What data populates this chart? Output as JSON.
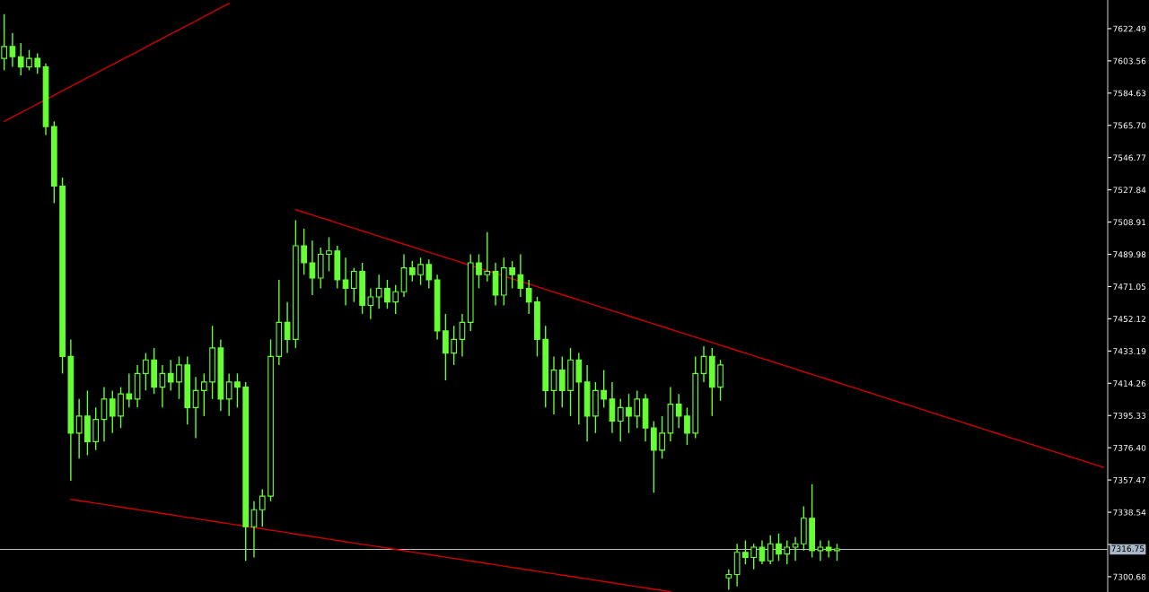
{
  "chart_data": {
    "type": "candlestick",
    "color": "#66ff33",
    "categories": [
      null,
      null,
      null,
      null,
      null,
      null,
      null,
      null,
      null,
      null,
      null,
      null,
      null,
      null,
      null,
      null,
      null,
      null,
      null,
      null,
      null,
      null,
      null,
      null,
      null,
      null,
      null,
      null,
      null,
      null,
      null,
      null,
      null,
      null,
      null,
      null,
      null,
      null,
      null,
      null,
      null,
      null,
      null,
      null,
      null,
      null,
      null,
      null,
      null,
      null,
      null,
      null,
      null,
      null,
      null,
      null,
      null,
      null,
      null,
      null,
      null,
      null,
      null,
      null,
      null,
      null,
      null,
      null,
      null,
      null,
      null,
      null,
      null,
      null,
      null,
      null,
      null,
      null,
      null,
      null,
      null,
      null,
      null,
      null,
      null,
      null,
      null,
      null,
      null,
      null,
      null,
      null,
      null,
      null,
      null,
      null,
      null,
      null,
      null,
      null,
      null,
      null,
      null,
      null,
      null,
      null,
      null,
      null,
      null,
      null,
      null,
      null,
      null,
      null,
      null,
      null,
      null,
      null,
      null,
      null,
      null,
      null,
      null,
      null,
      null,
      null,
      null,
      null,
      null,
      null,
      null,
      null,
      null
    ],
    "ohlc": [
      [
        7605,
        7631,
        7598,
        7612
      ],
      [
        7612,
        7620,
        7600,
        7606
      ],
      [
        7606,
        7614,
        7595,
        7600
      ],
      [
        7600,
        7610,
        7598,
        7605
      ],
      [
        7605,
        7608,
        7596,
        7600
      ],
      [
        7600,
        7602,
        7560,
        7565
      ],
      [
        7565,
        7568,
        7520,
        7530
      ],
      [
        7530,
        7535,
        7420,
        7430
      ],
      [
        7430,
        7440,
        7357,
        7385
      ],
      [
        7385,
        7405,
        7370,
        7395
      ],
      [
        7395,
        7410,
        7372,
        7380
      ],
      [
        7380,
        7400,
        7375,
        7393
      ],
      [
        7393,
        7412,
        7380,
        7405
      ],
      [
        7405,
        7410,
        7385,
        7395
      ],
      [
        7395,
        7412,
        7388,
        7408
      ],
      [
        7408,
        7420,
        7400,
        7405
      ],
      [
        7405,
        7425,
        7400,
        7420
      ],
      [
        7420,
        7432,
        7410,
        7428
      ],
      [
        7428,
        7435,
        7408,
        7412
      ],
      [
        7412,
        7425,
        7400,
        7420
      ],
      [
        7420,
        7428,
        7410,
        7415
      ],
      [
        7415,
        7430,
        7405,
        7425
      ],
      [
        7425,
        7430,
        7390,
        7400
      ],
      [
        7400,
        7418,
        7382,
        7410
      ],
      [
        7410,
        7420,
        7395,
        7415
      ],
      [
        7415,
        7448,
        7405,
        7435
      ],
      [
        7435,
        7440,
        7398,
        7405
      ],
      [
        7405,
        7420,
        7395,
        7415
      ],
      [
        7415,
        7420,
        7400,
        7412
      ],
      [
        7412,
        7415,
        7310,
        7330
      ],
      [
        7330,
        7345,
        7312,
        7340
      ],
      [
        7340,
        7352,
        7330,
        7348
      ],
      [
        7348,
        7440,
        7345,
        7430
      ],
      [
        7430,
        7475,
        7425,
        7450
      ],
      [
        7450,
        7462,
        7432,
        7440
      ],
      [
        7440,
        7510,
        7435,
        7495
      ],
      [
        7495,
        7505,
        7478,
        7485
      ],
      [
        7485,
        7498,
        7466,
        7476
      ],
      [
        7476,
        7494,
        7470,
        7490
      ],
      [
        7490,
        7500,
        7480,
        7492
      ],
      [
        7492,
        7495,
        7470,
        7475
      ],
      [
        7475,
        7488,
        7460,
        7470
      ],
      [
        7470,
        7482,
        7462,
        7480
      ],
      [
        7480,
        7485,
        7455,
        7460
      ],
      [
        7460,
        7470,
        7452,
        7465
      ],
      [
        7465,
        7478,
        7458,
        7470
      ],
      [
        7470,
        7475,
        7458,
        7462
      ],
      [
        7462,
        7472,
        7455,
        7468
      ],
      [
        7468,
        7490,
        7465,
        7482
      ],
      [
        7482,
        7486,
        7474,
        7478
      ],
      [
        7478,
        7488,
        7472,
        7484
      ],
      [
        7484,
        7487,
        7470,
        7475
      ],
      [
        7475,
        7478,
        7440,
        7445
      ],
      [
        7445,
        7455,
        7416,
        7432
      ],
      [
        7432,
        7448,
        7425,
        7440
      ],
      [
        7440,
        7455,
        7430,
        7450
      ],
      [
        7450,
        7490,
        7445,
        7485
      ],
      [
        7485,
        7490,
        7470,
        7478
      ],
      [
        7478,
        7503,
        7474,
        7480
      ],
      [
        7480,
        7485,
        7460,
        7466
      ],
      [
        7466,
        7488,
        7460,
        7482
      ],
      [
        7482,
        7486,
        7470,
        7478
      ],
      [
        7478,
        7490,
        7465,
        7470
      ],
      [
        7470,
        7475,
        7455,
        7462
      ],
      [
        7462,
        7465,
        7430,
        7440
      ],
      [
        7440,
        7448,
        7400,
        7410
      ],
      [
        7410,
        7430,
        7396,
        7422
      ],
      [
        7422,
        7430,
        7400,
        7410
      ],
      [
        7410,
        7435,
        7395,
        7428
      ],
      [
        7428,
        7432,
        7390,
        7415
      ],
      [
        7415,
        7425,
        7380,
        7395
      ],
      [
        7395,
        7415,
        7385,
        7410
      ],
      [
        7410,
        7422,
        7400,
        7405
      ],
      [
        7405,
        7415,
        7385,
        7392
      ],
      [
        7392,
        7405,
        7380,
        7400
      ],
      [
        7400,
        7408,
        7385,
        7395
      ],
      [
        7395,
        7410,
        7388,
        7405
      ],
      [
        7405,
        7408,
        7380,
        7388
      ],
      [
        7388,
        7392,
        7350,
        7375
      ],
      [
        7375,
        7395,
        7370,
        7385
      ],
      [
        7385,
        7412,
        7380,
        7402
      ],
      [
        7402,
        7408,
        7388,
        7395
      ],
      [
        7395,
        7400,
        7378,
        7385
      ],
      [
        7385,
        7430,
        7382,
        7420
      ],
      [
        7420,
        7436,
        7415,
        7430
      ],
      [
        7430,
        7435,
        7395,
        7412
      ],
      [
        7412,
        7428,
        7404,
        7425
      ],
      [
        7300,
        7305,
        7293,
        7302
      ],
      [
        7302,
        7320,
        7295,
        7315
      ],
      [
        7315,
        7322,
        7308,
        7312
      ],
      [
        7312,
        7320,
        7305,
        7318
      ],
      [
        7318,
        7322,
        7308,
        7310
      ],
      [
        7310,
        7325,
        7308,
        7320
      ],
      [
        7320,
        7326,
        7310,
        7314
      ],
      [
        7314,
        7322,
        7308,
        7318
      ],
      [
        7318,
        7324,
        7310,
        7320
      ],
      [
        7320,
        7342,
        7316,
        7335
      ],
      [
        7335,
        7355,
        7312,
        7316
      ],
      [
        7316,
        7322,
        7310,
        7318
      ],
      [
        7318,
        7322,
        7312,
        7316
      ],
      [
        7316,
        7320,
        7310,
        7317
      ],
      null,
      null,
      null,
      null,
      null,
      null,
      null,
      null,
      null,
      null,
      null,
      null,
      null,
      null,
      null,
      null,
      null,
      null,
      null,
      null,
      null,
      null,
      null,
      null,
      null,
      null,
      null,
      null,
      null,
      null,
      null,
      null
    ],
    "series": [
      {
        "type": "line",
        "color": "#d00000",
        "values": [
          7568.0,
          7570.6,
          7573.1,
          7575.7,
          7578.3,
          7580.8,
          7583.4,
          7586.0,
          7588.5,
          7591.1,
          7593.7,
          7596.2,
          7598.8,
          7601.3,
          7603.9,
          7606.5,
          7609.0,
          7611.6,
          7614.2,
          7616.7,
          7619.3,
          7621.9,
          7624.4,
          7627.0,
          7629.6,
          7632.1,
          7634.7,
          7637.3,
          null,
          null,
          null,
          null,
          null,
          null,
          null,
          null,
          null,
          null,
          null,
          null,
          null,
          null,
          null,
          null,
          null,
          null,
          null,
          null,
          null,
          null,
          null,
          null,
          null,
          null,
          null,
          null,
          null,
          null,
          null,
          null,
          null,
          null,
          null,
          null,
          null,
          null,
          null,
          null,
          null,
          null,
          null,
          null,
          null,
          null,
          null,
          null,
          null,
          null,
          null,
          null,
          null,
          null,
          null,
          null,
          null,
          null,
          null,
          null,
          null,
          null,
          null,
          null,
          null,
          null,
          null,
          null,
          null,
          null,
          null,
          null,
          null,
          null,
          null,
          null,
          null,
          null,
          null,
          null,
          null,
          null,
          null,
          null,
          null,
          null,
          null,
          null,
          null,
          null,
          null,
          null,
          null,
          null,
          null,
          null,
          null,
          null,
          null,
          null,
          null,
          null,
          null,
          null,
          null
        ]
      },
      {
        "type": "line",
        "color": "#d00000",
        "values": [
          null,
          null,
          null,
          null,
          null,
          null,
          null,
          null,
          null,
          null,
          null,
          null,
          null,
          null,
          null,
          null,
          null,
          null,
          null,
          null,
          null,
          null,
          null,
          null,
          null,
          null,
          null,
          null,
          null,
          null,
          null,
          null,
          null,
          null,
          null,
          7516.2,
          7514.6,
          7513.1,
          7511.5,
          7510.0,
          7508.4,
          7506.8,
          7505.3,
          7503.7,
          7502.2,
          7500.6,
          7499.0,
          7497.5,
          7495.9,
          7494.4,
          7492.8,
          7491.2,
          7489.7,
          7488.1,
          7486.6,
          7485.0,
          7483.4,
          7481.9,
          7480.3,
          7478.8,
          7477.2,
          7475.6,
          7474.1,
          7472.5,
          7471.0,
          7469.4,
          7467.8,
          7466.3,
          7464.7,
          7463.2,
          7461.6,
          7460.0,
          7458.5,
          7456.9,
          7455.4,
          7453.8,
          7452.2,
          7450.7,
          7449.1,
          7447.6,
          7446.0,
          7444.4,
          7442.9,
          7441.3,
          7439.8,
          7438.2,
          7436.6,
          7435.1,
          7433.5,
          7432.0,
          7430.4,
          7428.8,
          7427.3,
          7425.7,
          7424.2,
          7422.6,
          7421.0,
          7419.5,
          7417.9,
          7416.4,
          7414.8,
          7413.2,
          7411.7,
          7410.1,
          7408.6,
          7407.0,
          7405.4,
          7403.9,
          7402.3,
          7400.8,
          7399.2,
          7397.6,
          7396.1,
          7394.5,
          7393.0,
          7391.4,
          7389.8,
          7388.3,
          7386.7,
          7385.2,
          7383.6,
          7382.0,
          7380.5,
          7378.9,
          7377.4,
          7375.8,
          7374.2,
          7372.7,
          7371.1,
          7369.6,
          7368.0,
          7366.4,
          7364.9
        ]
      },
      {
        "type": "line",
        "color": "#d00000",
        "values": [
          null,
          null,
          null,
          null,
          null,
          null,
          null,
          null,
          7346.1,
          7345.3,
          7344.6,
          7343.8,
          7343.1,
          7342.3,
          7341.6,
          7340.8,
          7340.1,
          7339.3,
          7338.6,
          7337.8,
          7337.1,
          7336.3,
          7335.5,
          7334.8,
          7334.0,
          7333.3,
          7332.5,
          7331.8,
          7331.0,
          7330.3,
          7329.5,
          7328.8,
          7328.0,
          7327.3,
          7326.5,
          7325.7,
          7325.0,
          7324.2,
          7323.5,
          7322.7,
          7322.0,
          7321.2,
          7320.5,
          7319.7,
          7319.0,
          7318.2,
          7317.5,
          7316.7,
          7315.9,
          7315.2,
          7314.4,
          7313.7,
          7312.9,
          7312.2,
          7311.4,
          7310.7,
          7309.9,
          7309.2,
          7308.4,
          7307.7,
          7306.9,
          7306.1,
          7305.4,
          7304.6,
          7303.9,
          7303.1,
          7302.4,
          7301.6,
          7300.9,
          7300.1,
          7299.4,
          7298.6,
          7297.9,
          7297.1,
          7296.3,
          7295.6,
          7294.8,
          7294.1,
          7293.3,
          7292.6,
          7291.8,
          null,
          null,
          null,
          null,
          null,
          null,
          null,
          null,
          null,
          null,
          null,
          null,
          null,
          null,
          null,
          null,
          null,
          null,
          null,
          null,
          null,
          null,
          null,
          null,
          null,
          null,
          null,
          null,
          null,
          null,
          null,
          null,
          null,
          null,
          null,
          null,
          null,
          null,
          null,
          null,
          null,
          null,
          null,
          null,
          null,
          null,
          null,
          null,
          null,
          null,
          null,
          null
        ]
      }
    ],
    "ylim": [
      7291.7,
      7639.3
    ],
    "yticks": [
      7300.68,
      {
        "value": 7319.61,
        "label": null
      },
      7338.54,
      7357.47,
      {
        "value": 7376.4,
        "label": "7376.40"
      },
      7395.33,
      7414.26,
      7433.19,
      7452.12,
      7471.05,
      7489.98,
      7508.91,
      7527.84,
      7546.77,
      {
        "value": 7565.7,
        "label": "7565.70"
      },
      7584.63,
      7603.56,
      7622.49
    ],
    "ref_lines": [
      {
        "axis": "y",
        "value": 7316.75,
        "label": "7316.75",
        "color": "#c0c0c0"
      }
    ],
    "tick_labels": "y",
    "grid": false,
    "legend": false
  }
}
